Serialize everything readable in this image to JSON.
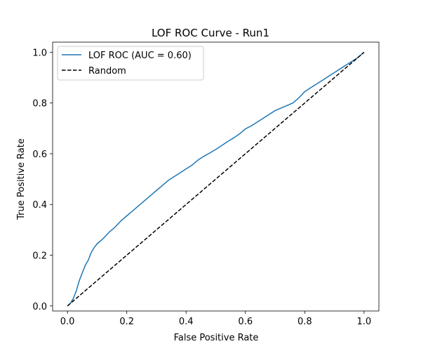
{
  "chart_data": {
    "type": "line",
    "title": "LOF ROC Curve - Run1",
    "xlabel": "False Positive Rate",
    "ylabel": "True Positive Rate",
    "xlim": [
      -0.05,
      1.05
    ],
    "ylim": [
      -0.02,
      1.04
    ],
    "xticks": [
      0.0,
      0.2,
      0.4,
      0.6,
      0.8,
      1.0
    ],
    "yticks": [
      0.0,
      0.2,
      0.4,
      0.6,
      0.8,
      1.0
    ],
    "xtick_labels": [
      "0.0",
      "0.2",
      "0.4",
      "0.6",
      "0.8",
      "1.0"
    ],
    "ytick_labels": [
      "0.0",
      "0.2",
      "0.4",
      "0.6",
      "0.8",
      "1.0"
    ],
    "grid": false,
    "legend_position": "top-left",
    "series": [
      {
        "name": "LOF ROC (AUC = 0.60)",
        "color": "#1f77b4",
        "style": "solid",
        "x": [
          0.0,
          0.01,
          0.02,
          0.03,
          0.04,
          0.05,
          0.06,
          0.07,
          0.08,
          0.09,
          0.1,
          0.12,
          0.14,
          0.16,
          0.18,
          0.2,
          0.22,
          0.24,
          0.26,
          0.28,
          0.3,
          0.32,
          0.34,
          0.36,
          0.38,
          0.4,
          0.42,
          0.44,
          0.46,
          0.48,
          0.5,
          0.52,
          0.54,
          0.56,
          0.58,
          0.6,
          0.62,
          0.64,
          0.66,
          0.68,
          0.7,
          0.72,
          0.74,
          0.76,
          0.78,
          0.8,
          0.82,
          0.84,
          0.86,
          0.88,
          0.9,
          0.92,
          0.94,
          0.96,
          0.98,
          1.0
        ],
        "y": [
          0.0,
          0.01,
          0.03,
          0.06,
          0.1,
          0.13,
          0.16,
          0.18,
          0.21,
          0.23,
          0.245,
          0.265,
          0.29,
          0.31,
          0.335,
          0.355,
          0.375,
          0.395,
          0.415,
          0.435,
          0.455,
          0.475,
          0.495,
          0.51,
          0.525,
          0.54,
          0.555,
          0.575,
          0.59,
          0.603,
          0.617,
          0.632,
          0.648,
          0.662,
          0.678,
          0.698,
          0.71,
          0.725,
          0.74,
          0.755,
          0.77,
          0.78,
          0.79,
          0.8,
          0.82,
          0.845,
          0.86,
          0.875,
          0.89,
          0.905,
          0.92,
          0.935,
          0.95,
          0.965,
          0.98,
          1.0
        ]
      },
      {
        "name": "Random",
        "color": "#000000",
        "style": "dashed",
        "x": [
          0.0,
          1.0
        ],
        "y": [
          0.0,
          1.0
        ]
      }
    ]
  }
}
